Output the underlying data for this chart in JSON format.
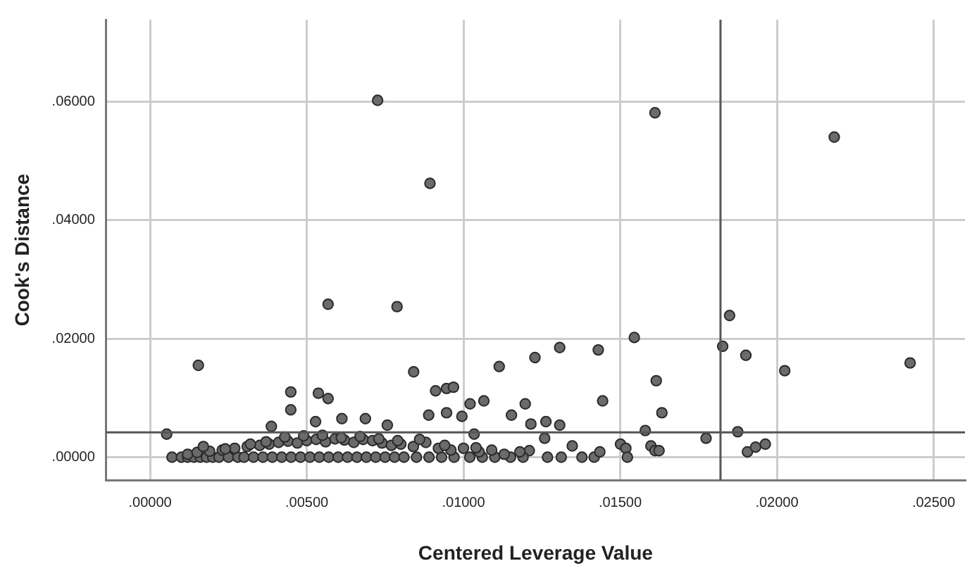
{
  "chart_data": {
    "type": "scatter",
    "xlabel": "Centered Leverage Value",
    "ylabel": "Cook's Distance",
    "xlim": [
      -0.0014,
      0.026
    ],
    "ylim": [
      -0.0039,
      0.0738
    ],
    "xticks": [
      {
        "value": 0,
        "label": ".00000"
      },
      {
        "value": 0.005,
        "label": ".00500"
      },
      {
        "value": 0.01,
        "label": ".01000"
      },
      {
        "value": 0.015,
        "label": ".01500"
      },
      {
        "value": 0.02,
        "label": ".02000"
      },
      {
        "value": 0.025,
        "label": ".02500"
      }
    ],
    "yticks": [
      {
        "value": 0,
        "label": ".00000"
      },
      {
        "value": 0.02,
        "label": ".02000"
      },
      {
        "value": 0.04,
        "label": ".04000"
      },
      {
        "value": 0.06,
        "label": ".06000"
      }
    ],
    "grid": true,
    "legend": false,
    "marker": "circle",
    "ref_lines": [
      {
        "axis": "x",
        "value": 0.0182,
        "color": "#555555"
      },
      {
        "axis": "y",
        "value": 0.0042,
        "color": "#555555"
      }
    ],
    "series": [
      {
        "color": "#6b6b6b",
        "x": [
          0.00726,
          0.01611,
          0.00893,
          0.02183,
          0.00568,
          0.00788,
          0.00154,
          0.00841,
          0.00449,
          0.00537,
          0.00568,
          0.00449,
          0.00911,
          0.00946,
          0.00968,
          0.01021,
          0.01065,
          0.01114,
          0.01228,
          0.01197,
          0.01153,
          0.01215,
          0.00053,
          0.00387,
          0.00528,
          0.00612,
          0.00687,
          0.00757,
          0.00889,
          0.00946,
          0.00995,
          0.01034,
          0.01849,
          0.01545,
          0.01827,
          0.01307,
          0.0143,
          0.01901,
          0.02025,
          0.02425,
          0.01615,
          0.01444,
          0.01633,
          0.01263,
          0.01307,
          0.0158,
          0.01259,
          0.01774,
          0.01875,
          0.01347,
          0.01501,
          0.01518,
          0.01598,
          0.01611,
          0.01624,
          0.01268,
          0.01312,
          0.01378,
          0.01417,
          0.01435,
          0.01523,
          0.01906,
          0.01932,
          0.01963,
          0.0121,
          0.0007,
          0.001,
          0.0012,
          0.0014,
          0.0016,
          0.0018,
          0.002,
          0.0022,
          0.0025,
          0.0028,
          0.003,
          0.0033,
          0.0036,
          0.0039,
          0.0042,
          0.0045,
          0.0048,
          0.0051,
          0.0054,
          0.0057,
          0.006,
          0.0063,
          0.0066,
          0.0069,
          0.0072,
          0.0075,
          0.0078,
          0.0081,
          0.0085,
          0.0089,
          0.0093,
          0.0097,
          0.0102,
          0.0106,
          0.011,
          0.0115,
          0.0119,
          0.0012,
          0.0015,
          0.0019,
          0.0023,
          0.0027,
          0.0031,
          0.0035,
          0.0038,
          0.0041,
          0.0044,
          0.0047,
          0.005,
          0.0053,
          0.0056,
          0.0059,
          0.0062,
          0.0065,
          0.0068,
          0.0071,
          0.0074,
          0.0077,
          0.008,
          0.0084,
          0.0088,
          0.0092,
          0.0096,
          0.01,
          0.0105,
          0.0109,
          0.0113,
          0.0118,
          0.0017,
          0.0024,
          0.0032,
          0.0037,
          0.0043,
          0.0049,
          0.0055,
          0.0061,
          0.0067,
          0.0073,
          0.0079,
          0.0086,
          0.0094,
          0.0104
        ],
        "values": [
          0.0602,
          0.0581,
          0.0462,
          0.054,
          0.0258,
          0.0254,
          0.0155,
          0.0144,
          0.011,
          0.0108,
          0.0099,
          0.008,
          0.0112,
          0.0116,
          0.0118,
          0.009,
          0.0095,
          0.0153,
          0.0168,
          0.009,
          0.0071,
          0.0056,
          0.0039,
          0.0052,
          0.006,
          0.0065,
          0.0065,
          0.0054,
          0.0071,
          0.0075,
          0.0069,
          0.0039,
          0.0239,
          0.0202,
          0.0187,
          0.0185,
          0.0181,
          0.0172,
          0.0146,
          0.0159,
          0.0129,
          0.0095,
          0.0075,
          0.006,
          0.0054,
          0.0045,
          0.0032,
          0.0032,
          0.0043,
          0.0019,
          0.0022,
          0.0015,
          0.0019,
          0.0011,
          0.0011,
          0,
          0,
          0,
          0,
          0.0009,
          0,
          0.0009,
          0.0017,
          0.0022,
          0.0011,
          0,
          0,
          0,
          0,
          0,
          0,
          0,
          0,
          0,
          0,
          0,
          0,
          0,
          0,
          0,
          0,
          0,
          0,
          0,
          0,
          0,
          0,
          0,
          0,
          0,
          0,
          0,
          0,
          0,
          0,
          0,
          0,
          0,
          0,
          0,
          0,
          0,
          0.0005,
          0.0008,
          0.001,
          0.0012,
          0.0015,
          0.0018,
          0.002,
          0.0022,
          0.0025,
          0.0027,
          0.0024,
          0.0028,
          0.003,
          0.0026,
          0.0031,
          0.0029,
          0.0025,
          0.003,
          0.0028,
          0.0024,
          0.002,
          0.0022,
          0.0018,
          0.0025,
          0.0015,
          0.0012,
          0.0015,
          0.0009,
          0.0012,
          0.0005,
          0.0009,
          0.0018,
          0.0014,
          0.0022,
          0.0026,
          0.0034,
          0.0036,
          0.0037,
          0.0033,
          0.0035,
          0.0031,
          0.0028,
          0.003,
          0.002,
          0.0016
        ]
      }
    ]
  }
}
